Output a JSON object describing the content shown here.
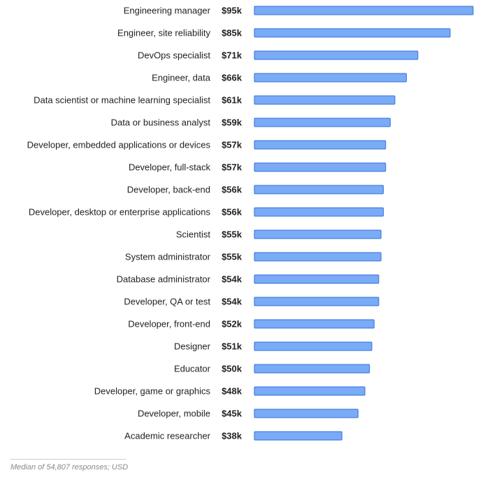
{
  "chart_data": {
    "type": "bar",
    "orientation": "horizontal",
    "categories": [
      "Engineering manager",
      "Engineer, site reliability",
      "DevOps specialist",
      "Engineer, data",
      "Data scientist or machine learning specialist",
      "Data or business analyst",
      "Developer, embedded applications or devices",
      "Developer, full-stack",
      "Developer, back-end",
      "Developer, desktop or enterprise applications",
      "Scientist",
      "System administrator",
      "Database administrator",
      "Developer, QA or test",
      "Developer, front-end",
      "Designer",
      "Educator",
      "Developer, game or graphics",
      "Developer, mobile",
      "Academic researcher"
    ],
    "values": [
      95,
      85,
      71,
      66,
      61,
      59,
      57,
      57,
      56,
      56,
      55,
      55,
      54,
      54,
      52,
      51,
      50,
      48,
      45,
      38
    ],
    "value_labels": [
      "$95k",
      "$85k",
      "$71k",
      "$66k",
      "$61k",
      "$59k",
      "$57k",
      "$57k",
      "$56k",
      "$56k",
      "$55k",
      "$55k",
      "$54k",
      "$54k",
      "$52k",
      "$51k",
      "$50k",
      "$48k",
      "$45k",
      "$38k"
    ],
    "xlim": [
      0,
      95
    ],
    "grid": false,
    "bar_color": "#7aabf7",
    "bar_edge_color": "#2f6fd6"
  },
  "footer": {
    "note": "Median of 54,807 responses; USD"
  }
}
